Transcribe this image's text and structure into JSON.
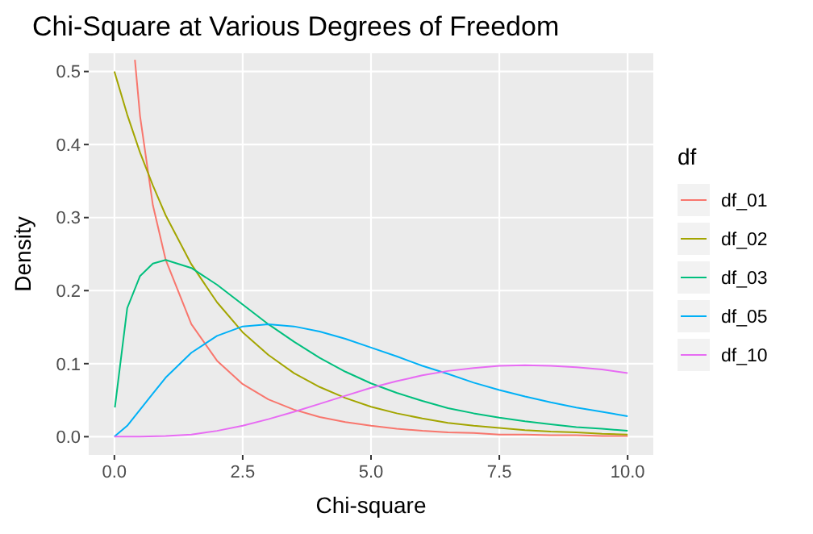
{
  "chart_data": {
    "type": "line",
    "title": "Chi-Square at Various Degrees of Freedom",
    "xlabel": "Chi-square",
    "ylabel": "Density",
    "legend_title": "df",
    "legend": "right",
    "grid": true,
    "xlim": [
      -0.5,
      10.5
    ],
    "xticks": [
      {
        "value": 0,
        "label": "0.0"
      },
      {
        "value": 2.5,
        "label": "2.5"
      },
      {
        "value": 5,
        "label": "5.0"
      },
      {
        "value": 7.5,
        "label": "7.5"
      },
      {
        "value": 10,
        "label": "10.0"
      }
    ],
    "ylim": [
      -0.025,
      0.525
    ],
    "yticks": [
      {
        "value": 0,
        "label": "0.0"
      },
      {
        "value": 0.1,
        "label": "0.1"
      },
      {
        "value": 0.2,
        "label": "0.2"
      },
      {
        "value": 0.3,
        "label": "0.3"
      },
      {
        "value": 0.4,
        "label": "0.4"
      },
      {
        "value": 0.5,
        "label": "0.5"
      }
    ],
    "series": [
      {
        "name": "df_01",
        "color": "#f8766d",
        "x": [
          0.4,
          0.5,
          0.75,
          1,
          1.5,
          2,
          2.5,
          3,
          3.5,
          4,
          4.5,
          5,
          5.5,
          6,
          6.5,
          7,
          7.5,
          8,
          8.5,
          9,
          9.5,
          10
        ],
        "values": [
          0.516,
          0.439,
          0.317,
          0.242,
          0.154,
          0.104,
          0.072,
          0.051,
          0.037,
          0.027,
          0.02,
          0.015,
          0.011,
          0.008,
          0.006,
          0.005,
          0.003,
          0.003,
          0.002,
          0.002,
          0.001,
          0.001
        ]
      },
      {
        "name": "df_02",
        "color": "#a3a500",
        "x": [
          0,
          0.25,
          0.5,
          0.75,
          1,
          1.5,
          2,
          2.5,
          3,
          3.5,
          4,
          4.5,
          5,
          5.5,
          6,
          6.5,
          7,
          7.5,
          8,
          8.5,
          9,
          9.5,
          10
        ],
        "values": [
          0.5,
          0.441,
          0.389,
          0.344,
          0.303,
          0.236,
          0.184,
          0.143,
          0.112,
          0.087,
          0.068,
          0.053,
          0.041,
          0.032,
          0.025,
          0.019,
          0.015,
          0.012,
          0.009,
          0.007,
          0.006,
          0.004,
          0.003
        ]
      },
      {
        "name": "df_03",
        "color": "#00bf7d",
        "x": [
          0.01,
          0.25,
          0.5,
          0.75,
          1,
          1.5,
          2,
          2.5,
          3,
          3.5,
          4,
          4.5,
          5,
          5.5,
          6,
          6.5,
          7,
          7.5,
          8,
          8.5,
          9,
          9.5,
          10
        ],
        "values": [
          0.04,
          0.176,
          0.22,
          0.237,
          0.242,
          0.231,
          0.208,
          0.181,
          0.154,
          0.13,
          0.108,
          0.089,
          0.073,
          0.06,
          0.049,
          0.039,
          0.032,
          0.026,
          0.021,
          0.017,
          0.013,
          0.011,
          0.008
        ]
      },
      {
        "name": "df_05",
        "color": "#00b0f6",
        "x": [
          0,
          0.25,
          0.5,
          0.75,
          1,
          1.5,
          2,
          2.5,
          3,
          3.5,
          4,
          4.5,
          5,
          5.5,
          6,
          6.5,
          7,
          7.5,
          8,
          8.5,
          9,
          9.5,
          10
        ],
        "values": [
          0,
          0.015,
          0.037,
          0.059,
          0.081,
          0.115,
          0.138,
          0.151,
          0.154,
          0.151,
          0.144,
          0.134,
          0.122,
          0.11,
          0.097,
          0.086,
          0.074,
          0.064,
          0.055,
          0.047,
          0.04,
          0.034,
          0.028
        ]
      },
      {
        "name": "df_10",
        "color": "#e76bf3",
        "x": [
          0,
          0.5,
          1,
          1.5,
          2,
          2.5,
          3,
          3.5,
          4,
          4.5,
          5,
          5.5,
          6,
          6.5,
          7,
          7.5,
          8,
          8.5,
          9,
          9.5,
          10
        ],
        "values": [
          0,
          0.0,
          0.001,
          0.003,
          0.008,
          0.015,
          0.024,
          0.034,
          0.045,
          0.056,
          0.067,
          0.076,
          0.084,
          0.09,
          0.094,
          0.097,
          0.098,
          0.097,
          0.095,
          0.092,
          0.087
        ]
      }
    ]
  }
}
